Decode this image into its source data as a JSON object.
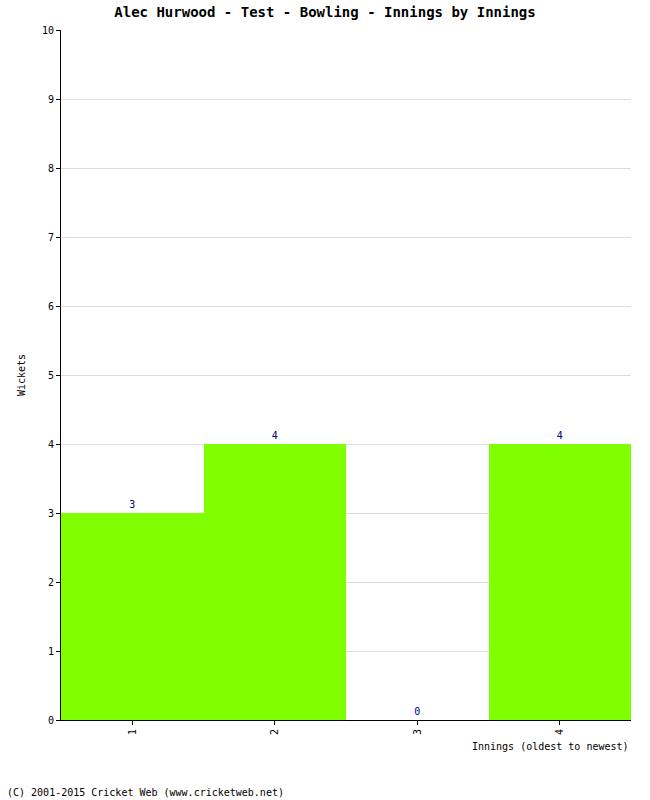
{
  "chart_data": {
    "type": "bar",
    "title": "Alec Hurwood - Test - Bowling - Innings by Innings",
    "x_label": "Innings (oldest to newest)",
    "y_label": "Wickets",
    "categories": [
      "1",
      "2",
      "3",
      "4"
    ],
    "values": [
      3,
      4,
      0,
      4
    ],
    "color": "#80ff00",
    "ylim": [
      0,
      10
    ],
    "yticks": [
      0,
      1,
      2,
      3,
      4,
      5,
      6,
      7,
      8,
      9,
      10
    ],
    "grid": true,
    "data_labels": true,
    "annotations": [
      "(C) 2001-2015 Cricket Web (www.cricketweb.net)"
    ]
  }
}
